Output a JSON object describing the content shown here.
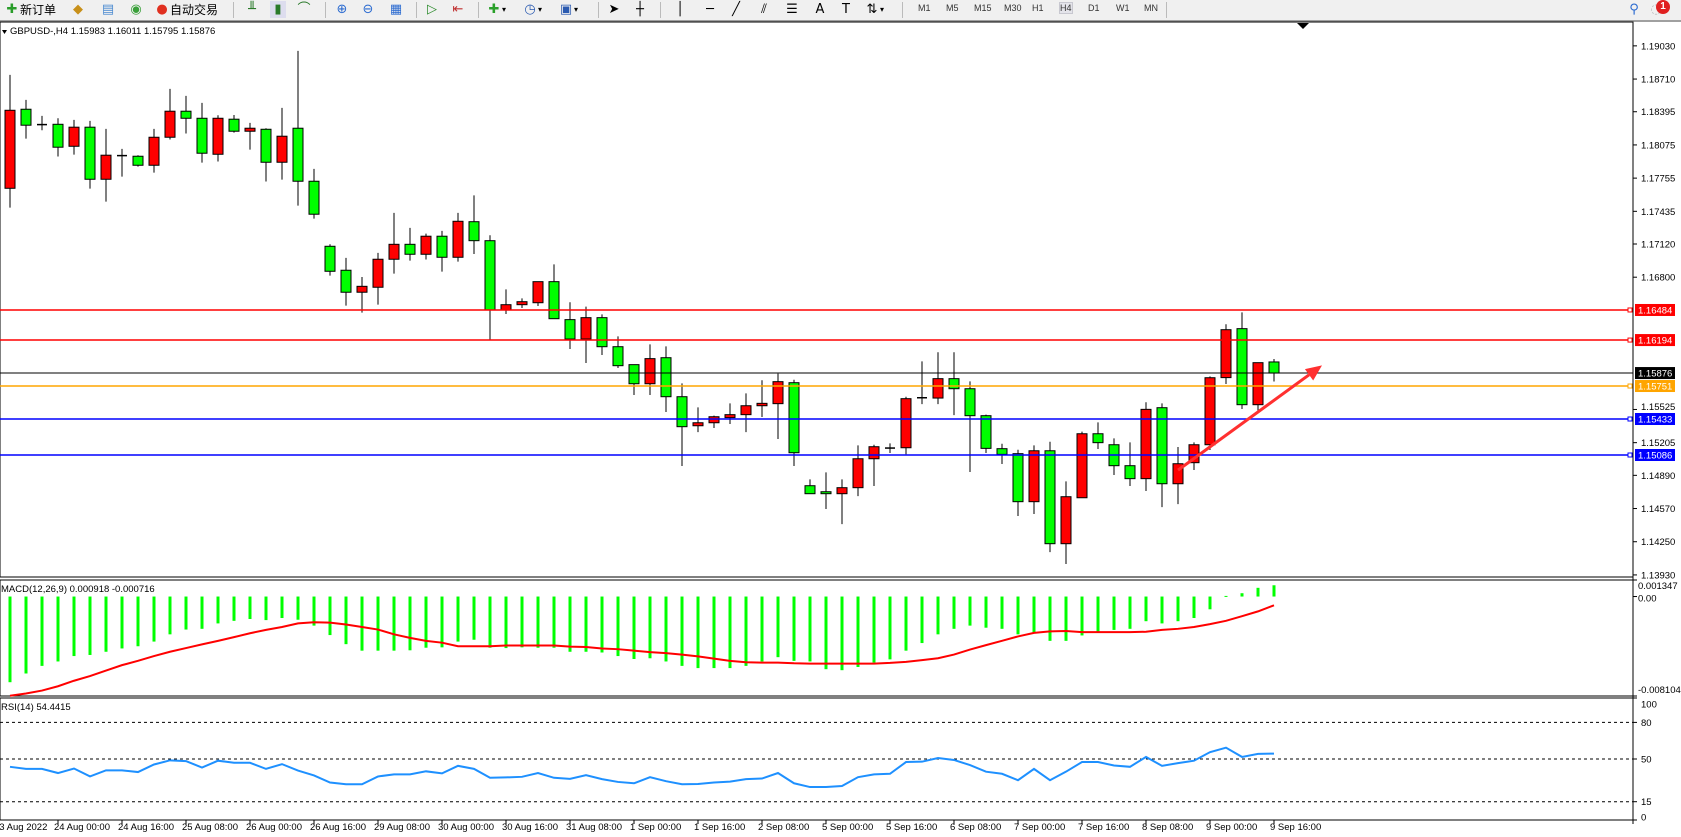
{
  "toolbar": {
    "new_order_label": "新订单",
    "auto_trading_label": "自动交易",
    "timeframes": [
      "M1",
      "M5",
      "M15",
      "M30",
      "H1",
      "H4",
      "D1",
      "W1",
      "MN"
    ],
    "active_timeframe": "H4",
    "notification_count": "1",
    "icons": [
      "new-order-icon",
      "market-watch-icon",
      "navigator-icon",
      "signals-icon",
      "auto-trading-icon",
      "bar-chart-icon",
      "candlestick-icon",
      "line-chart-icon",
      "zoom-in-icon",
      "zoom-out-icon",
      "tile-windows-icon",
      "autoscroll-icon",
      "chart-shift-icon",
      "indicators-icon",
      "periods-icon",
      "templates-icon",
      "cursor-icon",
      "crosshair-icon",
      "vertical-line-icon",
      "horizontal-line-icon",
      "trendline-icon",
      "equidistant-channel-icon",
      "fibonacci-icon",
      "text-icon",
      "text-label-icon",
      "arrows-icon",
      "search-icon",
      "chat-icon"
    ]
  },
  "chart_title": "GBPUSD-,H4  1.15983 1.16011 1.15795 1.15876",
  "chart_data": [
    {
      "type": "candlestick",
      "symbol": "GBPUSD-",
      "timeframe": "H4",
      "ylim": [
        1.1391,
        1.1926
      ],
      "price_ticks": [
        "1.19030",
        "1.18710",
        "1.18395",
        "1.18075",
        "1.17755",
        "1.17435",
        "1.17120",
        "1.16800",
        "1.15525",
        "1.15205",
        "1.14890",
        "1.14570",
        "1.14250",
        "1.13930"
      ],
      "time_labels": [
        "23 Aug 2022",
        "24 Aug 00:00",
        "24 Aug 16:00",
        "25 Aug 08:00",
        "26 Aug 00:00",
        "26 Aug 16:00",
        "29 Aug 08:00",
        "30 Aug 00:00",
        "30 Aug 16:00",
        "31 Aug 08:00",
        "1 Sep 00:00",
        "1 Sep 16:00",
        "2 Sep 08:00",
        "5 Sep 00:00",
        "5 Sep 16:00",
        "6 Sep 08:00",
        "7 Sep 00:00",
        "7 Sep 16:00",
        "8 Sep 08:00",
        "9 Sep 00:00",
        "9 Sep 16:00"
      ],
      "colors": {
        "bull": "#ff0000",
        "bear": "#00ff00",
        "outline": "#000000"
      },
      "ohlc": [
        [
          1.17657,
          1.1875,
          1.17471,
          1.18409
        ],
        [
          1.18419,
          1.18509,
          1.18136,
          1.18265
        ],
        [
          1.18271,
          1.18355,
          1.18217,
          1.18271
        ],
        [
          1.18274,
          1.18332,
          1.17963,
          1.18053
        ],
        [
          1.18062,
          1.18316,
          1.17982,
          1.18246
        ],
        [
          1.18246,
          1.18307,
          1.17654,
          1.17744
        ],
        [
          1.17744,
          1.1823,
          1.17529,
          1.17976
        ],
        [
          1.17972,
          1.18037,
          1.1777,
          1.17972
        ],
        [
          1.17966,
          1.17976,
          1.17866,
          1.17879
        ],
        [
          1.17879,
          1.1823,
          1.17808,
          1.18149
        ],
        [
          1.18149,
          1.18615,
          1.18127,
          1.184
        ],
        [
          1.184,
          1.18548,
          1.18185,
          1.18332
        ],
        [
          1.18332,
          1.1848,
          1.17905,
          1.17995
        ],
        [
          1.17985,
          1.18361,
          1.17915,
          1.18332
        ],
        [
          1.18323,
          1.18364,
          1.18194,
          1.18207
        ],
        [
          1.18207,
          1.18287,
          1.1803,
          1.18236
        ],
        [
          1.18226,
          1.18236,
          1.17722,
          1.17908
        ],
        [
          1.17908,
          1.18432,
          1.17741,
          1.18159
        ],
        [
          1.18236,
          1.18982,
          1.1749,
          1.17725
        ],
        [
          1.17725,
          1.17844,
          1.17365,
          1.17407
        ],
        [
          1.17098,
          1.17117,
          1.16815,
          1.16857
        ],
        [
          1.16867,
          1.16986,
          1.16526,
          1.16655
        ],
        [
          1.16655,
          1.16802,
          1.16459,
          1.16712
        ],
        [
          1.16703,
          1.17034,
          1.16536,
          1.16973
        ],
        [
          1.16973,
          1.1742,
          1.16835,
          1.17117
        ],
        [
          1.17117,
          1.17275,
          1.1696,
          1.17021
        ],
        [
          1.17021,
          1.1722,
          1.1697,
          1.17195
        ],
        [
          1.17195,
          1.17246,
          1.16854,
          1.16992
        ],
        [
          1.16992,
          1.1742,
          1.1695,
          1.17339
        ],
        [
          1.17335,
          1.17589,
          1.17024,
          1.17152
        ],
        [
          1.17152,
          1.17204,
          1.16198,
          1.16484
        ],
        [
          1.16484,
          1.16683,
          1.16445,
          1.16535
        ],
        [
          1.16535,
          1.16596,
          1.16503,
          1.16564
        ],
        [
          1.16554,
          1.16757,
          1.16522,
          1.16757
        ],
        [
          1.16757,
          1.16924,
          1.164,
          1.164
        ],
        [
          1.16391,
          1.16558,
          1.16108,
          1.16204
        ],
        [
          1.16204,
          1.16516,
          1.15973,
          1.1641
        ],
        [
          1.1641,
          1.16442,
          1.1605,
          1.1613
        ],
        [
          1.1613,
          1.1623,
          1.15925,
          1.15947
        ],
        [
          1.15957,
          1.15957,
          1.15664,
          1.15773
        ],
        [
          1.15773,
          1.16153,
          1.15664,
          1.16015
        ],
        [
          1.16024,
          1.16133,
          1.155,
          1.15648
        ],
        [
          1.15648,
          1.15777,
          1.1498,
          1.15359
        ],
        [
          1.15368,
          1.15545,
          1.15307,
          1.15397
        ],
        [
          1.15397,
          1.15465,
          1.15346,
          1.15455
        ],
        [
          1.15446,
          1.15584,
          1.15385,
          1.15475
        ],
        [
          1.15475,
          1.1568,
          1.15307,
          1.15561
        ],
        [
          1.15561,
          1.15806,
          1.15452,
          1.15584
        ],
        [
          1.15581,
          1.1587,
          1.1524,
          1.15793
        ],
        [
          1.15783,
          1.15812,
          1.1498,
          1.15108
        ],
        [
          1.1479,
          1.14851,
          1.14713,
          1.14713
        ],
        [
          1.14732,
          1.14919,
          1.14565,
          1.14713
        ],
        [
          1.14713,
          1.14851,
          1.1442,
          1.14771
        ],
        [
          1.14771,
          1.15179,
          1.1469,
          1.1505
        ],
        [
          1.1505,
          1.15185,
          1.14787,
          1.15166
        ],
        [
          1.15153,
          1.15198,
          1.15105,
          1.15153
        ],
        [
          1.15156,
          1.15648,
          1.15092,
          1.15629
        ],
        [
          1.15638,
          1.15989,
          1.15577,
          1.15638
        ],
        [
          1.15635,
          1.16076,
          1.15577,
          1.15822
        ],
        [
          1.15822,
          1.16076,
          1.15471,
          1.15725
        ],
        [
          1.15725,
          1.15796,
          1.14922,
          1.15465
        ],
        [
          1.15465,
          1.15475,
          1.15105,
          1.1515
        ],
        [
          1.15147,
          1.15195,
          1.14999,
          1.15092
        ],
        [
          1.15099,
          1.15137,
          1.14498,
          1.14636
        ],
        [
          1.14636,
          1.15179,
          1.14517,
          1.15127
        ],
        [
          1.15127,
          1.15214,
          1.1415,
          1.14231
        ],
        [
          1.14231,
          1.14832,
          1.14035,
          1.14684
        ],
        [
          1.14674,
          1.15311,
          1.14674,
          1.15291
        ],
        [
          1.15291,
          1.15401,
          1.15144,
          1.15205
        ],
        [
          1.15185,
          1.15246,
          1.14893,
          1.14983
        ],
        [
          1.14983,
          1.15208,
          1.14787,
          1.14858
        ],
        [
          1.14858,
          1.15594,
          1.14739,
          1.15526
        ],
        [
          1.15542,
          1.15584,
          1.14584,
          1.14809
        ],
        [
          1.14809,
          1.15163,
          1.14613,
          1.15002
        ],
        [
          1.15012,
          1.15208,
          1.14941,
          1.15185
        ],
        [
          1.15185,
          1.15844,
          1.15134,
          1.15831
        ],
        [
          1.15832,
          1.16346,
          1.1577,
          1.16294
        ],
        [
          1.16304,
          1.16461,
          1.15529,
          1.15571
        ],
        [
          1.15571,
          1.15976,
          1.1549,
          1.15976
        ],
        [
          1.15983,
          1.16011,
          1.15795,
          1.15876
        ]
      ],
      "current_price": {
        "value": "1.15876",
        "color": "#000000"
      },
      "horizontal_lines": [
        {
          "value": "1.16484",
          "color": "#ff0000"
        },
        {
          "value": "1.16194",
          "color": "#ff0000"
        },
        {
          "value": "1.15751",
          "color": "#ffa500"
        },
        {
          "value": "1.15433",
          "color": "#0000ff"
        },
        {
          "value": "1.15086",
          "color": "#0000ff"
        }
      ],
      "annotation": {
        "type": "arrow",
        "color": "#ff3030",
        "from": {
          "bar": 74,
          "price": 1.1494
        },
        "to": {
          "bar": 83,
          "price": 1.1595
        }
      }
    },
    {
      "type": "bar+line",
      "indicator": "MACD",
      "label": "MACD(12,26,9) 0.000918 -0.000716",
      "ylim": [
        -0.008104,
        0.001347
      ],
      "ticks": [
        "0.001347",
        "0.00",
        "-0.008104"
      ],
      "histogram_color": "#00ff00",
      "signal_color": "#ff0000",
      "histogram": [
        -0.00698,
        -0.00627,
        -0.00565,
        -0.00529,
        -0.00485,
        -0.00476,
        -0.0045,
        -0.00423,
        -0.00405,
        -0.00367,
        -0.00308,
        -0.00269,
        -0.00263,
        -0.00219,
        -0.00198,
        -0.00183,
        -0.00192,
        -0.00175,
        -0.00189,
        -0.00237,
        -0.00314,
        -0.00388,
        -0.00441,
        -0.00441,
        -0.00441,
        -0.00438,
        -0.00417,
        -0.00414,
        -0.00367,
        -0.00352,
        -0.00417,
        -0.0042,
        -0.00414,
        -0.00417,
        -0.00417,
        -0.0045,
        -0.0045,
        -0.00456,
        -0.00485,
        -0.00509,
        -0.00503,
        -0.00529,
        -0.00565,
        -0.00583,
        -0.00583,
        -0.00583,
        -0.00565,
        -0.00529,
        -0.00494,
        -0.00524,
        -0.00529,
        -0.00592,
        -0.006,
        -0.00574,
        -0.00538,
        -0.00512,
        -0.00441,
        -0.00379,
        -0.00308,
        -0.00263,
        -0.00237,
        -0.00254,
        -0.00263,
        -0.00308,
        -0.00293,
        -0.00361,
        -0.00361,
        -0.00317,
        -0.00293,
        -0.00272,
        -0.00263,
        -0.00201,
        -0.00219,
        -0.00201,
        -0.00175,
        -0.00104,
        5e-05,
        0.00027,
        0.00071,
        0.000918
      ],
      "signal": [
        -0.00808,
        -0.0079,
        -0.00766,
        -0.00731,
        -0.00686,
        -0.00648,
        -0.00603,
        -0.00559,
        -0.00524,
        -0.00485,
        -0.0045,
        -0.0042,
        -0.0039,
        -0.00361,
        -0.00331,
        -0.00299,
        -0.00272,
        -0.00248,
        -0.00219,
        -0.0021,
        -0.00213,
        -0.00228,
        -0.00248,
        -0.00269,
        -0.00308,
        -0.00337,
        -0.00361,
        -0.00376,
        -0.00405,
        -0.00405,
        -0.00405,
        -0.00399,
        -0.00399,
        -0.00399,
        -0.00399,
        -0.00408,
        -0.00411,
        -0.00423,
        -0.00429,
        -0.00441,
        -0.00453,
        -0.00461,
        -0.00473,
        -0.00488,
        -0.00506,
        -0.00524,
        -0.00535,
        -0.00538,
        -0.00538,
        -0.00544,
        -0.00547,
        -0.00547,
        -0.00547,
        -0.00547,
        -0.00547,
        -0.00541,
        -0.00532,
        -0.00518,
        -0.00503,
        -0.00473,
        -0.00432,
        -0.00396,
        -0.00361,
        -0.00325,
        -0.00296,
        -0.00284,
        -0.00281,
        -0.0029,
        -0.0029,
        -0.0029,
        -0.0029,
        -0.00287,
        -0.00272,
        -0.00263,
        -0.00248,
        -0.00225,
        -0.00198,
        -0.0016,
        -0.00121,
        -0.000716
      ]
    },
    {
      "type": "line",
      "indicator": "RSI",
      "label": "RSI(14) 54.4415",
      "ylim": [
        0,
        100
      ],
      "ticks": [
        "100",
        "80",
        "50",
        "15",
        "0"
      ],
      "levels": [
        80,
        50,
        15
      ],
      "line_color": "#1e90ff",
      "values": [
        43.6,
        41.9,
        41.9,
        38.5,
        42.2,
        35.7,
        40.7,
        40.7,
        39.3,
        45.5,
        48.9,
        48.3,
        43.0,
        48.6,
        46.9,
        46.9,
        41.9,
        45.8,
        40.5,
        36.5,
        30.7,
        29.3,
        29.3,
        35.7,
        37.4,
        37.4,
        39.9,
        38.2,
        44.4,
        41.9,
        34.6,
        34.9,
        35.4,
        38.5,
        34.6,
        33.7,
        36.8,
        33.5,
        31.2,
        30.1,
        35.1,
        31.8,
        29.3,
        29.5,
        30.7,
        31.5,
        33.5,
        34.0,
        38.5,
        30.1,
        27.0,
        27.0,
        27.9,
        35.1,
        37.4,
        37.9,
        47.5,
        47.8,
        50.8,
        49.2,
        45.0,
        39.6,
        37.9,
        32.6,
        41.9,
        32.6,
        39.6,
        47.5,
        47.5,
        44.7,
        43.6,
        51.7,
        44.4,
        46.6,
        48.6,
        55.6,
        59.3,
        51.7,
        54.2,
        54.4415
      ]
    }
  ]
}
